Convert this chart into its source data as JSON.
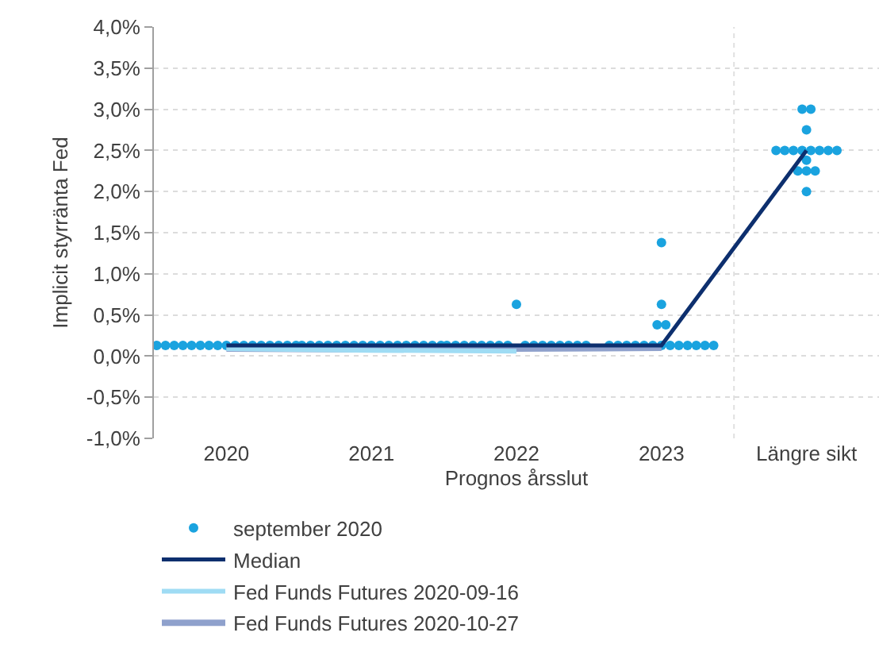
{
  "chart_data": {
    "type": "line",
    "xlabel": "Prognos årsslut",
    "ylabel": "Implicit styrränta Fed",
    "xlim": [
      2019.5,
      2024.5
    ],
    "xticks": [
      2020,
      2021,
      2022,
      2023,
      {
        "value": 2024,
        "label": "Längre sikt"
      }
    ],
    "ylim": [
      -1.0,
      4.0
    ],
    "yticks": [
      {
        "value": -1.0,
        "label": "-1,0%"
      },
      {
        "value": -0.5,
        "label": "-0,5%"
      },
      {
        "value": 0,
        "label": "0,0%"
      },
      {
        "value": 0.5,
        "label": "0,5%"
      },
      {
        "value": 1.0,
        "label": "1,0%"
      },
      {
        "value": 1.5,
        "label": "1,5%"
      },
      {
        "value": 2.0,
        "label": "2,0%"
      },
      {
        "value": 2.5,
        "label": "2,5%"
      },
      {
        "value": 3.0,
        "label": "3,0%"
      },
      {
        "value": 3.5,
        "label": "3,5%"
      },
      {
        "value": 4.0,
        "label": "4,0%"
      }
    ],
    "grid": "y",
    "legend": "bottom left",
    "ref_lines": [
      {
        "axis": "x",
        "value": 2023.5,
        "label": null,
        "color": "#e0e0e0",
        "line_style": "dotted"
      }
    ],
    "series": [
      {
        "name": "september 2020",
        "type": "scatter",
        "marker": "circle",
        "color": "#1aa3df",
        "x": [
          2019.52,
          2019.58,
          2019.64,
          2019.7,
          2019.76,
          2019.82,
          2019.88,
          2019.94,
          2020,
          2020.06,
          2020.12,
          2020.18,
          2020.24,
          2020.3,
          2020.36,
          2020.42,
          2020.48,
          2020.52,
          2020.58,
          2020.64,
          2020.7,
          2020.76,
          2020.82,
          2020.88,
          2020.94,
          2021,
          2021.06,
          2021.12,
          2021.18,
          2021.24,
          2021.3,
          2021.36,
          2021.42,
          2021.48,
          2021.52,
          2021.58,
          2021.64,
          2021.7,
          2021.76,
          2021.82,
          2021.88,
          2021.94,
          2022.06,
          2022.12,
          2022.18,
          2022.24,
          2022.3,
          2022.36,
          2022.42,
          2022.48,
          2022,
          2022.64,
          2022.7,
          2022.76,
          2022.82,
          2022.88,
          2022.94,
          2023,
          2023.06,
          2023.12,
          2023.18,
          2023.24,
          2023.3,
          2023.36,
          2022.97,
          2023.03,
          2023,
          2023,
          2023.79,
          2023.85,
          2023.91,
          2023.97,
          2024.03,
          2024.09,
          2024.15,
          2024.21,
          2023.97,
          2024.03,
          2024,
          2024,
          2023.94,
          2024,
          2024.06,
          2024
        ],
        "values": [
          0.13,
          0.13,
          0.13,
          0.13,
          0.13,
          0.13,
          0.13,
          0.13,
          0.13,
          0.13,
          0.13,
          0.13,
          0.13,
          0.13,
          0.13,
          0.13,
          0.13,
          0.13,
          0.13,
          0.13,
          0.13,
          0.13,
          0.13,
          0.13,
          0.13,
          0.13,
          0.13,
          0.13,
          0.13,
          0.13,
          0.13,
          0.13,
          0.13,
          0.13,
          0.13,
          0.13,
          0.13,
          0.13,
          0.13,
          0.13,
          0.13,
          0.13,
          0.13,
          0.13,
          0.13,
          0.13,
          0.13,
          0.13,
          0.13,
          0.13,
          0.63,
          0.13,
          0.13,
          0.13,
          0.13,
          0.13,
          0.13,
          0.13,
          0.13,
          0.13,
          0.13,
          0.13,
          0.13,
          0.13,
          0.38,
          0.38,
          0.63,
          1.38,
          2.5,
          2.5,
          2.5,
          2.5,
          2.5,
          2.5,
          2.5,
          2.5,
          3.0,
          3.0,
          2.75,
          2.38,
          2.25,
          2.25,
          2.25,
          2.0
        ]
      },
      {
        "name": "Fed Funds Futures 2020-10-27",
        "color": "#8fa1cc",
        "x": [
          2020,
          2021,
          2022,
          2023
        ],
        "values": [
          0.09,
          0.08,
          0.09,
          0.1
        ]
      },
      {
        "name": "Fed Funds Futures 2020-09-16",
        "color": "#9fdcf4",
        "x": [
          2020,
          2021,
          2022
        ],
        "values": [
          0.09,
          0.07,
          0.06
        ]
      },
      {
        "name": "Median",
        "color": "#0d2f6e",
        "x": [
          2020,
          2021,
          2022,
          2023,
          2024
        ],
        "values": [
          0.13,
          0.13,
          0.13,
          0.13,
          2.5
        ]
      }
    ]
  }
}
